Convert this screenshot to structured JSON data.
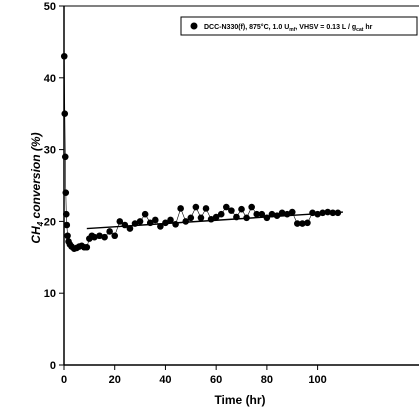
{
  "chart_data": {
    "type": "scatter",
    "xlabel": "Time (hr)",
    "ylabel": "CH4 conversion (%)",
    "ylabel_main": "CH",
    "ylabel_sub": "4",
    "ylabel_rest": " conversion (%)",
    "xlim": [
      0,
      110
    ],
    "ylim": [
      0,
      50
    ],
    "xticks": [
      0,
      20,
      40,
      60,
      80,
      100
    ],
    "yticks": [
      0,
      10,
      20,
      30,
      40,
      50
    ],
    "grid": false,
    "legend_position": "top-right",
    "series": [
      {
        "name": "DCC-N330(f), 875°C, 1.0 U, VHSV = 0.13 L / g hr",
        "legend_text": "DCC-N330(f), 875°C, 1.0 U",
        "legend_sub1": "mf",
        "legend_text2": ", VHSV = 0.13 L / g",
        "legend_sub2": "cat",
        "legend_text3": " hr",
        "marker": "circle",
        "color": "#000000",
        "x": [
          0.1,
          0.3,
          0.5,
          0.7,
          0.9,
          1.1,
          1.4,
          1.8,
          2.3,
          3,
          4,
          5,
          6,
          7,
          8,
          9,
          10,
          11,
          12,
          14,
          16,
          18,
          20,
          22,
          24,
          26,
          28,
          30,
          32,
          34,
          36,
          38,
          40,
          42,
          44,
          46,
          48,
          50,
          52,
          54,
          56,
          58,
          60,
          62,
          64,
          66,
          68,
          70,
          72,
          74,
          76,
          78,
          80,
          82,
          84,
          86,
          88,
          90,
          92,
          94,
          96,
          98,
          100,
          102,
          104,
          106,
          108
        ],
        "y": [
          43,
          35,
          29,
          24,
          21,
          19.5,
          18,
          17.2,
          16.8,
          16.5,
          16.2,
          16.3,
          16.5,
          16.6,
          16.4,
          16.4,
          17.6,
          18,
          17.8,
          18,
          17.8,
          18.6,
          18,
          20,
          19.5,
          19,
          19.7,
          20,
          21,
          19.8,
          20.2,
          19.3,
          19.8,
          20.2,
          19.6,
          21.8,
          20,
          20.5,
          22,
          20.5,
          21.8,
          20.3,
          20.6,
          21,
          22,
          21.5,
          20.6,
          21.7,
          20.5,
          22,
          21,
          21,
          20.5,
          21,
          20.8,
          21.2,
          21,
          21.3,
          19.7,
          19.7,
          19.8,
          21.2,
          21,
          21.2,
          21.3,
          21.2,
          21.2
        ]
      }
    ],
    "trend_line": {
      "x": [
        9,
        110
      ],
      "y": [
        19,
        21.3
      ]
    }
  }
}
